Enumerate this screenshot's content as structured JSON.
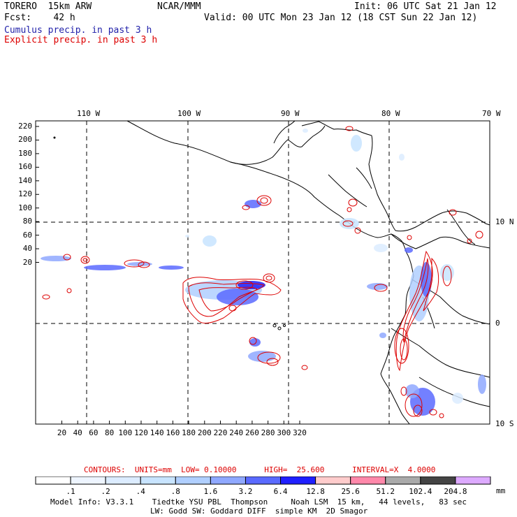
{
  "header": {
    "line1_left": "TORERO  15km ARW",
    "line1_center": "NCAR/MMM",
    "line1_right": "Init: 06 UTC Sat 21 Jan 12",
    "line2_left": "Fcst:    42 h",
    "line2_right": "Valid: 00 UTC Mon 23 Jan 12 (18 CST Sun 22 Jan 12)",
    "line3": "Cumulus precip. in past 3 h",
    "line4": "Explicit precip. in past 3 h"
  },
  "map": {
    "top_lon_labels": [
      "110 W",
      "100 W",
      "90 W",
      "80 W",
      "70 W"
    ],
    "right_lat_labels": [
      "10 N",
      "0",
      "10 S"
    ],
    "y_ticks": [
      "220",
      "200",
      "180",
      "160",
      "140",
      "120",
      "100",
      "80",
      "60",
      "40",
      "20"
    ],
    "x_ticks": [
      "20",
      "40",
      "60",
      "80",
      "100",
      "120",
      "140",
      "160",
      "180",
      "200",
      "220",
      "240",
      "260",
      "280",
      "300",
      "320"
    ],
    "colors": {
      "cumulus": "#2233cc",
      "explicit": "#dd0000",
      "land_outline": "#000000"
    }
  },
  "footer": {
    "contours_line": "CONTOURS:  UNITS=mm  LOW= 0.10000      HIGH=  25.600      INTERVAL=X  4.0000",
    "colorbar_labels": [
      ".1",
      ".2",
      ".4",
      ".8",
      "1.6",
      "3.2",
      "6.4",
      "12.8",
      "25.6",
      "51.2",
      "102.4",
      "204.8"
    ],
    "colorbar_unit": "mm",
    "colorbar_colors": [
      "#ffffff",
      "#eef5ff",
      "#dcecff",
      "#c8e4ff",
      "#b0cfff",
      "#8fa8ff",
      "#5a6aff",
      "#1f1fff",
      "#ffcccc",
      "#ff88aa",
      "#aaaaaa",
      "#444444",
      "#ddaaff"
    ],
    "model_info_1": "Model Info: V3.3.1    Tiedtke YSU PBL  Thompson     Noah LSM  15 km,   44 levels,   83 sec",
    "model_info_2": "LW: Godd SW: Goddard DIFF  simple KM  2D Smagor"
  }
}
